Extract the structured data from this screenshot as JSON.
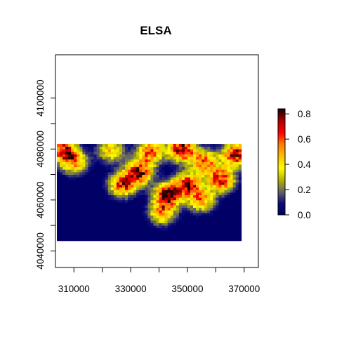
{
  "chart_data": {
    "type": "heatmap",
    "title": "ELSA",
    "xlabel": "",
    "ylabel": "",
    "xlim": [
      303500,
      375000
    ],
    "ylim": [
      4033500,
      4117000
    ],
    "raster_extent": {
      "x": [
        304000,
        369000
      ],
      "y": [
        4044000,
        4082000
      ]
    },
    "x_ticks": [
      310000,
      330000,
      350000,
      370000
    ],
    "x_tick_labels": [
      "310000",
      "330000",
      "350000",
      "370000"
    ],
    "y_ticks": [
      4040000,
      4060000,
      4080000,
      4100000
    ],
    "y_tick_labels": [
      "4040000",
      "4060000",
      "4080000",
      "4100000"
    ],
    "value_range": [
      0,
      0.84
    ],
    "colorbar": {
      "ticks": [
        0.0,
        0.2,
        0.4,
        0.6,
        0.8
      ],
      "tick_labels": [
        "0.0",
        "0.2",
        "0.4",
        "0.6",
        "0.8"
      ],
      "colors": [
        "#000066",
        "#0b0b7a",
        "#666666",
        "#b3b300",
        "#ffff00",
        "#ffbf00",
        "#ff8000",
        "#ff0000",
        "#b30000",
        "#1a0000"
      ],
      "placement": "right"
    },
    "grid": false,
    "hotspots": [
      {
        "x": 348000,
        "y": 4080000,
        "value": 0.8
      },
      {
        "x": 343000,
        "y": 4062000,
        "value": 0.78
      },
      {
        "x": 362000,
        "y": 4068000,
        "value": 0.7
      },
      {
        "x": 333000,
        "y": 4071000,
        "value": 0.72
      },
      {
        "x": 367000,
        "y": 4078000,
        "value": 0.75
      },
      {
        "x": 306000,
        "y": 4080000,
        "value": 0.65
      },
      {
        "x": 337000,
        "y": 4079000,
        "value": 0.6
      },
      {
        "x": 350000,
        "y": 4066000,
        "value": 0.7
      },
      {
        "x": 356000,
        "y": 4075000,
        "value": 0.6
      },
      {
        "x": 327000,
        "y": 4066000,
        "value": 0.65
      },
      {
        "x": 310000,
        "y": 4075000,
        "value": 0.55
      },
      {
        "x": 323000,
        "y": 4079500,
        "value": 0.45
      },
      {
        "x": 341000,
        "y": 4055000,
        "value": 0.5
      },
      {
        "x": 355000,
        "y": 4060000,
        "value": 0.5
      }
    ]
  }
}
